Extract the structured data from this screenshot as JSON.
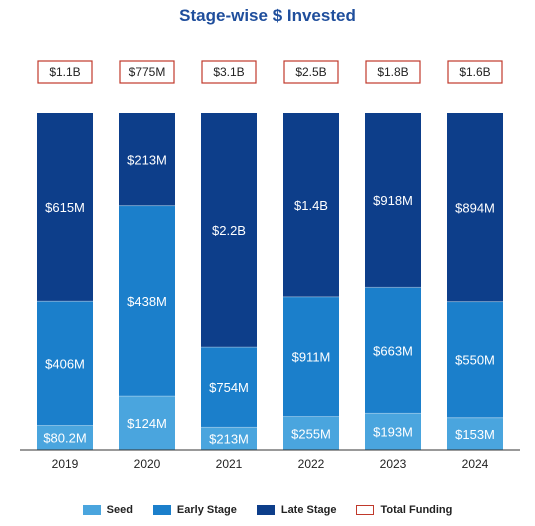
{
  "chart_data": {
    "type": "bar",
    "stacked": true,
    "title": "Stage-wise $ Invested",
    "categories": [
      "2019",
      "2020",
      "2021",
      "2022",
      "2023",
      "2024"
    ],
    "series": [
      {
        "name": "Seed",
        "values": [
          80.2,
          124,
          213,
          255,
          193,
          153
        ],
        "labels": [
          "$80.2M",
          "$124M",
          "$213M",
          "$255M",
          "$193M",
          "$153M"
        ],
        "color": "#4aa5de"
      },
      {
        "name": "Early Stage",
        "values": [
          406,
          438,
          754,
          911,
          663,
          550
        ],
        "labels": [
          "$406M",
          "$438M",
          "$754M",
          "$911M",
          "$663M",
          "$550M"
        ],
        "color": "#1b7fcb"
      },
      {
        "name": "Late Stage",
        "values": [
          615,
          213,
          2200,
          1400,
          918,
          894
        ],
        "labels": [
          "$615M",
          "$213M",
          "$2.2B",
          "$1.4B",
          "$918M",
          "$894M"
        ],
        "color": "#0d3e8a"
      }
    ],
    "totals": {
      "name": "Total Funding",
      "labels": [
        "$1.1B",
        "$775M",
        "$3.1B",
        "$2.5B",
        "$1.8B",
        "$1.6B"
      ],
      "color": "#c0392b"
    },
    "normalized": true,
    "legend_position": "bottom",
    "grid": false
  }
}
